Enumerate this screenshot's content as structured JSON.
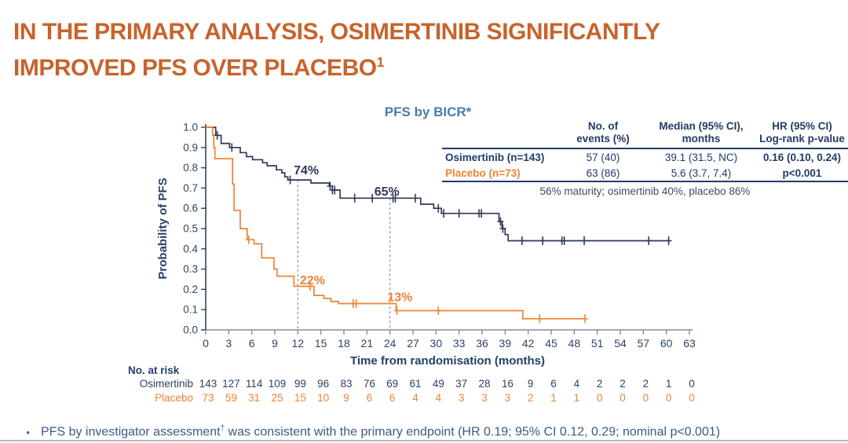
{
  "header": {
    "title_line1": "IN THE PRIMARY ANALYSIS, OSIMERTINIB SIGNIFICANTLY",
    "title_line2": "IMPROVED PFS OVER PLACEBO",
    "title_sup": "1"
  },
  "chart_data": {
    "type": "line",
    "subtype": "kaplan-meier-step",
    "title": "PFS by BICR*",
    "xlabel": "Time from randomisation (months)",
    "ylabel": "Probability of PFS",
    "xlim": [
      0,
      63
    ],
    "ylim": [
      0.0,
      1.0
    ],
    "xticks": [
      0,
      3,
      6,
      9,
      12,
      15,
      18,
      21,
      24,
      27,
      30,
      33,
      36,
      39,
      42,
      45,
      48,
      51,
      54,
      57,
      60,
      63
    ],
    "yticks": [
      0.0,
      0.1,
      0.2,
      0.3,
      0.4,
      0.5,
      0.6,
      0.7,
      0.8,
      0.9,
      1.0
    ],
    "grid": false,
    "legend": "none (series identified in summary table)",
    "series": [
      {
        "name": "Osimertinib",
        "color": "#2F3A59",
        "steps": [
          [
            0,
            1.0
          ],
          [
            1.3,
            0.96
          ],
          [
            2.0,
            0.92
          ],
          [
            3.1,
            0.9
          ],
          [
            4.5,
            0.875
          ],
          [
            5.3,
            0.855
          ],
          [
            6.1,
            0.84
          ],
          [
            7.4,
            0.825
          ],
          [
            8.0,
            0.81
          ],
          [
            9.2,
            0.79
          ],
          [
            9.9,
            0.775
          ],
          [
            10.3,
            0.755
          ],
          [
            10.7,
            0.74
          ],
          [
            13.7,
            0.725
          ],
          [
            16.1,
            0.71
          ],
          [
            16.5,
            0.69
          ],
          [
            17.5,
            0.65
          ],
          [
            28.0,
            0.62
          ],
          [
            29.7,
            0.6
          ],
          [
            30.7,
            0.575
          ],
          [
            38.2,
            0.535
          ],
          [
            38.6,
            0.5
          ],
          [
            39.0,
            0.47
          ],
          [
            39.4,
            0.44
          ],
          [
            60.5,
            0.44
          ]
        ],
        "censor_times": [
          1.5,
          3.4,
          11.0,
          16.2,
          16.5,
          16.8,
          19.4,
          21.7,
          24.4,
          24.7,
          27.3,
          30.3,
          31.0,
          33.0,
          35.6,
          35.9,
          38.4,
          38.7,
          41.2,
          43.9,
          46.4,
          46.7,
          49.3,
          57.7,
          60.3
        ]
      },
      {
        "name": "Placebo",
        "color": "#EF8335",
        "steps": [
          [
            0,
            1.0
          ],
          [
            0.9,
            0.96
          ],
          [
            1.05,
            0.9
          ],
          [
            1.2,
            0.845
          ],
          [
            3.5,
            0.72
          ],
          [
            3.7,
            0.59
          ],
          [
            4.5,
            0.5
          ],
          [
            5.4,
            0.445
          ],
          [
            6.3,
            0.425
          ],
          [
            7.3,
            0.355
          ],
          [
            8.9,
            0.3
          ],
          [
            9.3,
            0.265
          ],
          [
            11.5,
            0.215
          ],
          [
            14.1,
            0.17
          ],
          [
            15.4,
            0.155
          ],
          [
            16.3,
            0.14
          ],
          [
            17.3,
            0.13
          ],
          [
            24.8,
            0.095
          ],
          [
            41.3,
            0.055
          ],
          [
            49.5,
            0.055
          ]
        ],
        "censor_times": [
          5.6,
          13.6,
          19.2,
          19.6,
          24.9,
          30.3,
          43.5,
          49.4
        ]
      }
    ],
    "annotations": [
      {
        "text": "74%",
        "x": 13.1,
        "y": 0.767,
        "color": "#2F3A59"
      },
      {
        "text": "65%",
        "x": 23.6,
        "y": 0.663,
        "color": "#2F3A59"
      },
      {
        "text": "22%",
        "x": 13.9,
        "y": 0.225,
        "color": "#EF8335"
      },
      {
        "text": "13%",
        "x": 25.3,
        "y": 0.142,
        "color": "#EF8335"
      }
    ],
    "reference_lines": [
      {
        "x": 12,
        "y_top": 0.74
      },
      {
        "x": 24,
        "y_top": 0.65
      }
    ]
  },
  "summary_table": {
    "col_headers": [
      {
        "line1": "No. of",
        "line2": "events (%)"
      },
      {
        "line1": "Median (95% CI),",
        "line2": "months"
      },
      {
        "line1": "HR (95% CI)",
        "line2": "Log-rank p-value"
      }
    ],
    "rows": [
      {
        "label": "Osimertinib (n=143)",
        "events": "57 (40)",
        "median": "39.1 (31.5, NC)",
        "hr": "0.16 (0.10, 0.24)"
      },
      {
        "label": "Placebo (n=73)",
        "events": "63 (86)",
        "median": "5.6 (3.7, 7.4)",
        "hr": "p<0.001"
      }
    ],
    "footnote": "56% maturity; osimertinib 40%, placebo 86%"
  },
  "risk_table": {
    "title": "No. at risk",
    "rows": [
      {
        "label": "Osimertinib",
        "color": "#2C4165",
        "values": [
          143,
          127,
          114,
          109,
          99,
          96,
          83,
          76,
          69,
          61,
          49,
          37,
          28,
          16,
          9,
          6,
          4,
          2,
          2,
          2,
          1,
          0
        ]
      },
      {
        "label": "Placebo",
        "color": "#EF8335",
        "values": [
          73,
          59,
          31,
          25,
          15,
          10,
          9,
          6,
          6,
          4,
          4,
          3,
          3,
          3,
          2,
          1,
          1,
          0,
          0,
          0,
          0,
          0
        ]
      }
    ]
  },
  "footer": {
    "bullet": "•",
    "text_pre": "PFS by investigator assessment",
    "text_sup": "†",
    "text_post": " was consistent with the primary endpoint (HR 0.19; 95% CI 0.12, 0.29; nominal p<0.001)"
  }
}
